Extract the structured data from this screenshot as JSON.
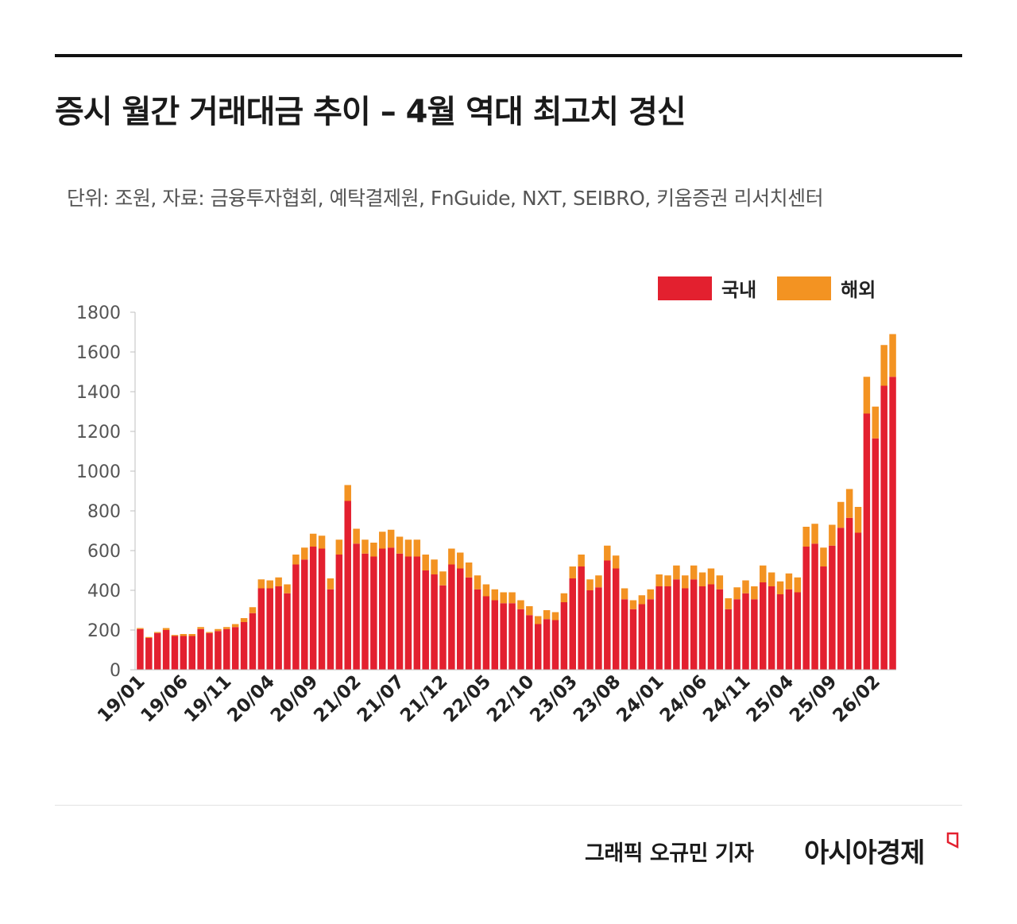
{
  "title": "증시 월간 거래대금 추이 – 4월 역대 최고치 경신",
  "subtitle": "단위: 조원, 자료: 금융투자협회, 예탁결제원, FnGuide, NXT, SEIBRO, 키움증권 리서치센터",
  "legend": {
    "domestic_label": "국내",
    "overseas_label": "해외",
    "domestic_color": "#e3202f",
    "overseas_color": "#f39322"
  },
  "footer": {
    "credit": "그래픽  오규민 기자",
    "brand": "아시아경제"
  },
  "chart_data": {
    "type": "bar",
    "stacked": true,
    "ylim": [
      0,
      1800
    ],
    "yticks": [
      0,
      200,
      400,
      600,
      800,
      1000,
      1200,
      1400,
      1600,
      1800
    ],
    "xtick_labels": [
      "19/01",
      "19/06",
      "19/11",
      "20/04",
      "20/09",
      "21/02",
      "21/07",
      "21/12",
      "22/05",
      "22/10",
      "23/03",
      "23/08",
      "24/01",
      "24/06",
      "24/11",
      "25/04",
      "25/09",
      "26/02"
    ],
    "categories": [
      "19/01",
      "19/02",
      "19/03",
      "19/04",
      "19/05",
      "19/06",
      "19/07",
      "19/08",
      "19/09",
      "19/10",
      "19/11",
      "19/12",
      "20/01",
      "20/02",
      "20/03",
      "20/04",
      "20/05",
      "20/06",
      "20/07",
      "20/08",
      "20/09",
      "20/10",
      "20/11",
      "20/12",
      "21/01",
      "21/02",
      "21/03",
      "21/04",
      "21/05",
      "21/06",
      "21/07",
      "21/08",
      "21/09",
      "21/10",
      "21/11",
      "21/12",
      "22/01",
      "22/02",
      "22/03",
      "22/04",
      "22/05",
      "22/06",
      "22/07",
      "22/08",
      "22/09",
      "22/10",
      "22/11",
      "22/12",
      "23/01",
      "23/02",
      "23/03",
      "23/04",
      "23/05",
      "23/06",
      "23/07",
      "23/08",
      "23/09",
      "23/10",
      "23/11",
      "23/12",
      "24/01",
      "24/02",
      "24/03",
      "24/04",
      "24/05",
      "24/06",
      "24/07",
      "24/08",
      "24/09",
      "24/10",
      "24/11",
      "24/12",
      "25/01",
      "25/02",
      "25/03",
      "25/04",
      "25/05",
      "25/06",
      "25/07",
      "25/08",
      "25/09",
      "25/10",
      "25/11",
      "25/12",
      "26/01",
      "26/02",
      "26/03",
      "26/04"
    ],
    "series": [
      {
        "name": "국내",
        "values": [
          205,
          160,
          185,
          200,
          170,
          170,
          170,
          205,
          185,
          195,
          205,
          215,
          240,
          285,
          410,
          410,
          420,
          385,
          530,
          555,
          620,
          610,
          405,
          580,
          850,
          635,
          585,
          570,
          610,
          615,
          585,
          570,
          570,
          500,
          480,
          425,
          530,
          510,
          465,
          405,
          370,
          350,
          335,
          335,
          305,
          275,
          230,
          255,
          250,
          340,
          460,
          520,
          400,
          415,
          550,
          510,
          355,
          305,
          330,
          355,
          420,
          420,
          455,
          410,
          455,
          420,
          430,
          405,
          305,
          355,
          385,
          355,
          440,
          420,
          380,
          405,
          390,
          620,
          635,
          520,
          625,
          715,
          765,
          690,
          1290,
          1165,
          1430,
          1475
        ]
      },
      {
        "name": "해외",
        "values": [
          5,
          5,
          5,
          10,
          5,
          10,
          10,
          10,
          5,
          10,
          10,
          15,
          20,
          30,
          45,
          40,
          45,
          45,
          50,
          60,
          65,
          65,
          55,
          75,
          80,
          75,
          70,
          70,
          85,
          90,
          85,
          85,
          85,
          80,
          75,
          70,
          80,
          80,
          75,
          70,
          60,
          55,
          55,
          55,
          45,
          45,
          40,
          45,
          40,
          45,
          60,
          60,
          55,
          60,
          75,
          65,
          55,
          45,
          45,
          50,
          60,
          55,
          70,
          65,
          70,
          70,
          80,
          70,
          55,
          60,
          65,
          65,
          85,
          70,
          65,
          80,
          75,
          100,
          100,
          95,
          105,
          130,
          145,
          130,
          185,
          160,
          205,
          215
        ]
      }
    ]
  }
}
